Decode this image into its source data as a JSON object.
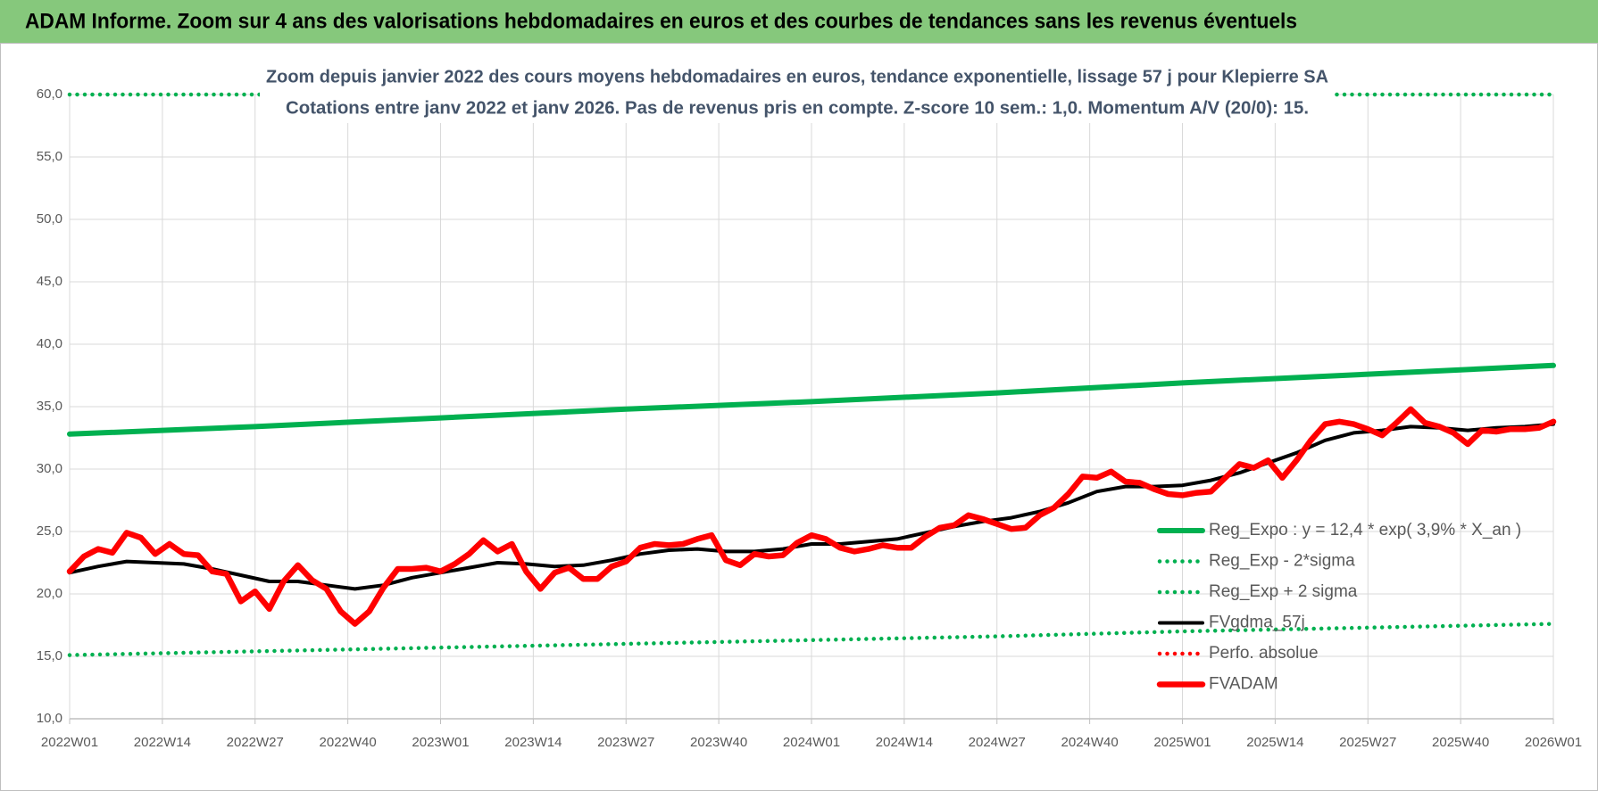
{
  "chart_data": {
    "type": "line",
    "title": "ADAM Informe. Zoom sur 4 ans des valorisations hebdomadaires en euros et des courbes de tendances sans les revenus éventuels",
    "subtitle": [
      "Zoom depuis janvier 2022 des cours moyens hebdomadaires en euros, tendance exponentielle, lissage 57 j pour Klepierre SA",
      "Cotations entre janv 2022 et janv 2026. Pas de revenus pris en compte. Z-score 10 sem.: 1,0. Momentum A/V (20/0): 15."
    ],
    "xlim": [
      "2022W01",
      "2026W01"
    ],
    "xticks": [
      "2022W01",
      "2022W14",
      "2022W27",
      "2022W40",
      "2023W01",
      "2023W14",
      "2023W27",
      "2023W40",
      "2024W01",
      "2024W14",
      "2024W27",
      "2024W40",
      "2025W01",
      "2025W14",
      "2025W27",
      "2025W40",
      "2026W01"
    ],
    "ylim": [
      10,
      60
    ],
    "yticks": [
      {
        "value": 10,
        "label": "10,0"
      },
      {
        "value": 15,
        "label": "15,0"
      },
      {
        "value": 20,
        "label": "20,0"
      },
      {
        "value": 25,
        "label": "25,0"
      },
      {
        "value": 30,
        "label": "30,0"
      },
      {
        "value": 35,
        "label": "35,0"
      },
      {
        "value": 40,
        "label": "40,0"
      },
      {
        "value": 45,
        "label": "45,0"
      },
      {
        "value": 50,
        "label": "50,0"
      },
      {
        "value": 55,
        "label": "55,0"
      },
      {
        "value": 60,
        "label": "60,0"
      }
    ],
    "grid": true,
    "legend": "right",
    "series": [
      {
        "name": "Reg_Expo : y = 12,4 * exp( 3,9% * X_an )",
        "color": "#00b050",
        "style": "solid",
        "x": [
          "2022W01",
          "2022W27",
          "2023W01",
          "2023W27",
          "2024W01",
          "2024W27",
          "2025W01",
          "2025W27",
          "2026W01"
        ],
        "values": [
          32.8,
          33.4,
          34.1,
          34.8,
          35.4,
          36.1,
          36.9,
          37.6,
          38.3
        ]
      },
      {
        "name": "Reg_Exp - 2*sigma",
        "color": "#00b050",
        "style": "dotted",
        "x": [
          "2022W01",
          "2022W27",
          "2023W01",
          "2023W27",
          "2024W01",
          "2024W27",
          "2025W01",
          "2025W27",
          "2026W01"
        ],
        "values": [
          15.1,
          15.4,
          15.7,
          16.0,
          16.3,
          16.6,
          17.0,
          17.3,
          17.6
        ]
      },
      {
        "name": "Reg_Exp + 2 sigma",
        "color": "#00b050",
        "style": "dotted",
        "x": [
          "2022W01",
          "2026W01"
        ],
        "values": [
          60,
          60
        ]
      },
      {
        "name": "FVgdma_57j",
        "color": "#000000",
        "style": "solid",
        "x": [
          "2022W01",
          "2022W05",
          "2022W09",
          "2022W13",
          "2022W17",
          "2022W21",
          "2022W25",
          "2022W29",
          "2022W33",
          "2022W37",
          "2022W41",
          "2022W45",
          "2022W49",
          "2023W01",
          "2023W05",
          "2023W09",
          "2023W13",
          "2023W17",
          "2023W21",
          "2023W25",
          "2023W29",
          "2023W33",
          "2023W37",
          "2023W41",
          "2023W45",
          "2023W49",
          "2024W01",
          "2024W05",
          "2024W09",
          "2024W13",
          "2024W17",
          "2024W21",
          "2024W25",
          "2024W29",
          "2024W33",
          "2024W37",
          "2024W41",
          "2024W45",
          "2024W49",
          "2025W01",
          "2025W05",
          "2025W09",
          "2025W13",
          "2025W17",
          "2025W21",
          "2025W25",
          "2025W29",
          "2025W33",
          "2025W37",
          "2025W41",
          "2025W45",
          "2025W49",
          "2026W01"
        ],
        "values": [
          21.7,
          22.2,
          22.6,
          22.5,
          22.4,
          22.0,
          21.5,
          21.0,
          21.0,
          20.7,
          20.4,
          20.7,
          21.3,
          21.7,
          22.1,
          22.5,
          22.4,
          22.2,
          22.3,
          22.7,
          23.2,
          23.5,
          23.6,
          23.4,
          23.4,
          23.6,
          24.0,
          24.0,
          24.2,
          24.4,
          24.9,
          25.4,
          25.8,
          26.1,
          26.6,
          27.3,
          28.2,
          28.6,
          28.6,
          28.7,
          29.1,
          29.7,
          30.5,
          31.3,
          32.3,
          32.9,
          33.1,
          33.4,
          33.3,
          33.1,
          33.3,
          33.4,
          33.6
        ]
      },
      {
        "name": "Perfo. absolue",
        "color": "#ff0000",
        "style": "dotted"
      },
      {
        "name": "FVADAM",
        "color": "#ff0000",
        "style": "solid",
        "x": [
          "2022W01",
          "2022W03",
          "2022W05",
          "2022W07",
          "2022W09",
          "2022W11",
          "2022W13",
          "2022W15",
          "2022W17",
          "2022W19",
          "2022W21",
          "2022W23",
          "2022W25",
          "2022W27",
          "2022W29",
          "2022W31",
          "2022W33",
          "2022W35",
          "2022W37",
          "2022W39",
          "2022W41",
          "2022W43",
          "2022W45",
          "2022W47",
          "2022W49",
          "2022W51",
          "2023W01",
          "2023W03",
          "2023W05",
          "2023W07",
          "2023W09",
          "2023W11",
          "2023W13",
          "2023W15",
          "2023W17",
          "2023W19",
          "2023W21",
          "2023W23",
          "2023W25",
          "2023W27",
          "2023W29",
          "2023W31",
          "2023W33",
          "2023W35",
          "2023W37",
          "2023W39",
          "2023W41",
          "2023W43",
          "2023W45",
          "2023W47",
          "2023W49",
          "2023W51",
          "2024W01",
          "2024W03",
          "2024W05",
          "2024W07",
          "2024W09",
          "2024W11",
          "2024W13",
          "2024W15",
          "2024W17",
          "2024W19",
          "2024W21",
          "2024W23",
          "2024W25",
          "2024W27",
          "2024W29",
          "2024W31",
          "2024W33",
          "2024W35",
          "2024W37",
          "2024W39",
          "2024W41",
          "2024W43",
          "2024W45",
          "2024W47",
          "2024W49",
          "2024W51",
          "2025W01",
          "2025W03",
          "2025W05",
          "2025W07",
          "2025W09",
          "2025W11",
          "2025W13",
          "2025W15",
          "2025W17",
          "2025W19",
          "2025W21",
          "2025W23",
          "2025W25",
          "2025W27",
          "2025W29",
          "2025W31",
          "2025W33",
          "2025W35",
          "2025W37",
          "2025W39",
          "2025W41",
          "2025W43",
          "2025W45",
          "2025W47",
          "2025W49",
          "2025W51",
          "2026W01"
        ],
        "values": [
          21.8,
          23.0,
          23.6,
          23.3,
          24.9,
          24.5,
          23.2,
          24.0,
          23.2,
          23.1,
          21.8,
          21.6,
          19.4,
          20.2,
          18.8,
          21.0,
          22.3,
          21.1,
          20.4,
          18.6,
          17.6,
          18.6,
          20.5,
          22.0,
          22.0,
          22.1,
          21.8,
          22.4,
          23.2,
          24.3,
          23.4,
          24.0,
          21.8,
          20.4,
          21.7,
          22.1,
          21.2,
          21.2,
          22.2,
          22.6,
          23.7,
          24.0,
          23.9,
          24.0,
          24.4,
          24.7,
          22.7,
          22.3,
          23.2,
          23.0,
          23.1,
          24.1,
          24.7,
          24.4,
          23.7,
          23.4,
          23.6,
          23.9,
          23.7,
          23.7,
          24.6,
          25.3,
          25.5,
          26.3,
          26.0,
          25.6,
          25.2,
          25.3,
          26.3,
          26.9,
          28.0,
          29.4,
          29.3,
          29.8,
          29.0,
          28.9,
          28.4,
          28.0,
          27.9,
          28.1,
          28.2,
          29.3,
          30.4,
          30.1,
          30.7,
          29.3,
          30.7,
          32.3,
          33.6,
          33.8,
          33.6,
          33.2,
          32.7,
          33.7,
          34.8,
          33.7,
          33.4,
          32.9,
          32.0,
          33.1,
          33.0,
          33.2,
          33.2,
          33.3,
          33.8
        ]
      }
    ]
  }
}
